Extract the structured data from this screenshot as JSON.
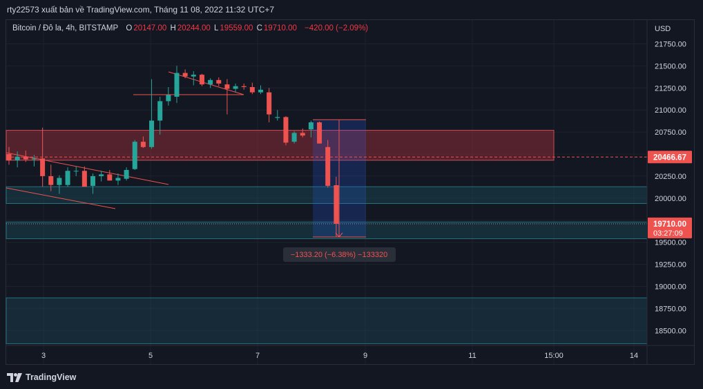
{
  "header": {
    "title": "rty22573 xuất bản về TradingView.com, Tháng 11 08, 2022 11:32 UTC+7"
  },
  "legend": {
    "symbol": "Bitcoin / Đô la, 4h, BITSTAMP",
    "open_label": "O",
    "open_value": "20147.00",
    "high_label": "H",
    "high_value": "20244.00",
    "low_label": "L",
    "low_value": "19559.00",
    "close_label": "C",
    "close_value": "19710.00",
    "change": "−420.00 (−2.09%)"
  },
  "footer": {
    "brand": "TradingView"
  },
  "colors": {
    "up": "#26a69a",
    "down": "#ef5350",
    "background": "#131722",
    "grid": "#1e222d",
    "zone_red": "#a3303c",
    "zone_teal": "#1b4b57",
    "measure": "#2962ff"
  },
  "chart_data": {
    "type": "candlestick",
    "currency": "USD",
    "ylim": [
      18330,
      22020
    ],
    "y_ticks": [
      "21750.00",
      "21500.00",
      "21250.00",
      "21000.00",
      "20750.00",
      "20500.00",
      "20250.00",
      "20000.00",
      "19750.00",
      "19500.00",
      "19250.00",
      "19000.00",
      "18750.00",
      "18500.00"
    ],
    "x_ticks": [
      "3",
      "5",
      "7",
      "9",
      "11",
      "15:00",
      "14"
    ],
    "price_labels": [
      {
        "value": "20466.67",
        "sub": ""
      },
      {
        "value": "19710.00",
        "sub": "03:27:09"
      }
    ],
    "measure_label": "−1333.20 (−6.38%) −133320",
    "candles": [
      {
        "o": 20500,
        "h": 20580,
        "l": 20380,
        "c": 20430
      },
      {
        "o": 20430,
        "h": 20530,
        "l": 20350,
        "c": 20470
      },
      {
        "o": 20470,
        "h": 20540,
        "l": 20410,
        "c": 20440
      },
      {
        "o": 20440,
        "h": 20490,
        "l": 20360,
        "c": 20450
      },
      {
        "o": 20450,
        "h": 20800,
        "l": 20130,
        "c": 20250
      },
      {
        "o": 20250,
        "h": 20380,
        "l": 20080,
        "c": 20150
      },
      {
        "o": 20150,
        "h": 20260,
        "l": 20050,
        "c": 20230
      },
      {
        "o": 20150,
        "h": 20350,
        "l": 20130,
        "c": 20310
      },
      {
        "o": 20310,
        "h": 20360,
        "l": 20250,
        "c": 20310
      },
      {
        "o": 20310,
        "h": 20360,
        "l": 20140,
        "c": 20130
      },
      {
        "o": 20140,
        "h": 20280,
        "l": 20050,
        "c": 20250
      },
      {
        "o": 20250,
        "h": 20310,
        "l": 20190,
        "c": 20270
      },
      {
        "o": 20270,
        "h": 20320,
        "l": 20200,
        "c": 20200
      },
      {
        "o": 20200,
        "h": 20280,
        "l": 20150,
        "c": 20230
      },
      {
        "o": 20220,
        "h": 20350,
        "l": 20200,
        "c": 20320
      },
      {
        "o": 20330,
        "h": 20660,
        "l": 20320,
        "c": 20640
      },
      {
        "o": 20640,
        "h": 20700,
        "l": 20570,
        "c": 20580
      },
      {
        "o": 20580,
        "h": 21350,
        "l": 20560,
        "c": 20880
      },
      {
        "o": 20880,
        "h": 21150,
        "l": 20720,
        "c": 21100
      },
      {
        "o": 21100,
        "h": 21260,
        "l": 21050,
        "c": 21170
      },
      {
        "o": 21150,
        "h": 21500,
        "l": 21080,
        "c": 21420
      },
      {
        "o": 21420,
        "h": 21460,
        "l": 21360,
        "c": 21380
      },
      {
        "o": 21380,
        "h": 21440,
        "l": 21280,
        "c": 21400
      },
      {
        "o": 21400,
        "h": 21410,
        "l": 21270,
        "c": 21290
      },
      {
        "o": 21290,
        "h": 21360,
        "l": 21250,
        "c": 21340
      },
      {
        "o": 21340,
        "h": 21370,
        "l": 21270,
        "c": 21300
      },
      {
        "o": 21290,
        "h": 21350,
        "l": 20950,
        "c": 21240
      },
      {
        "o": 21240,
        "h": 21300,
        "l": 21200,
        "c": 21270
      },
      {
        "o": 21270,
        "h": 21300,
        "l": 21230,
        "c": 21260
      },
      {
        "o": 21260,
        "h": 21310,
        "l": 21180,
        "c": 21200
      },
      {
        "o": 21200,
        "h": 21280,
        "l": 21180,
        "c": 21230
      },
      {
        "o": 21200,
        "h": 21250,
        "l": 20860,
        "c": 20950
      },
      {
        "o": 20910,
        "h": 21000,
        "l": 20880,
        "c": 20920
      },
      {
        "o": 20920,
        "h": 20930,
        "l": 20600,
        "c": 20630
      },
      {
        "o": 20640,
        "h": 20760,
        "l": 20620,
        "c": 20740
      },
      {
        "o": 20740,
        "h": 20790,
        "l": 20690,
        "c": 20710
      },
      {
        "o": 20780,
        "h": 20880,
        "l": 20690,
        "c": 20860
      },
      {
        "o": 20860,
        "h": 20870,
        "l": 20620,
        "c": 20620
      },
      {
        "o": 20580,
        "h": 20660,
        "l": 20120,
        "c": 20140
      },
      {
        "o": 20147,
        "h": 20244,
        "l": 19559,
        "c": 19710
      }
    ]
  }
}
